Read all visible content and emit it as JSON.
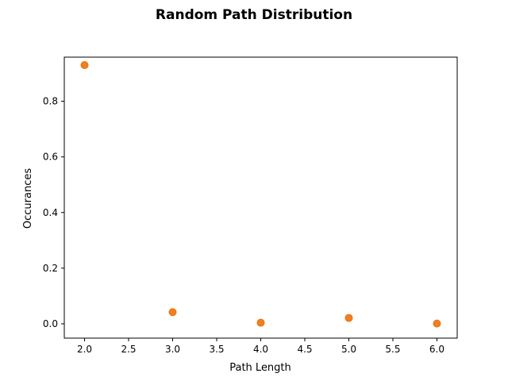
{
  "chart_data": {
    "type": "scatter",
    "title": "Random Path Distribution",
    "xlabel": "Path Length",
    "ylabel": "Occurances",
    "xlim": [
      1.77,
      6.23
    ],
    "ylim": [
      -0.0515,
      0.9585
    ],
    "xticks": [
      2.0,
      2.5,
      3.0,
      3.5,
      4.0,
      4.5,
      5.0,
      5.5,
      6.0
    ],
    "xtick_labels": [
      "2.0",
      "2.5",
      "3.0",
      "3.5",
      "4.0",
      "4.5",
      "5.0",
      "5.5",
      "6.0"
    ],
    "yticks": [
      0.0,
      0.2,
      0.4,
      0.6,
      0.8
    ],
    "ytick_labels": [
      "0.0",
      "0.2",
      "0.4",
      "0.6",
      "0.8"
    ],
    "grid": false,
    "marker_color": "#f27f1e",
    "marker_edge_color": "#e67414",
    "series": [
      {
        "points": [
          {
            "x": 2,
            "y": 0.93
          },
          {
            "x": 3,
            "y": 0.042
          },
          {
            "x": 4,
            "y": 0.004
          },
          {
            "x": 5,
            "y": 0.021
          },
          {
            "x": 6,
            "y": 0.001
          }
        ]
      }
    ]
  }
}
